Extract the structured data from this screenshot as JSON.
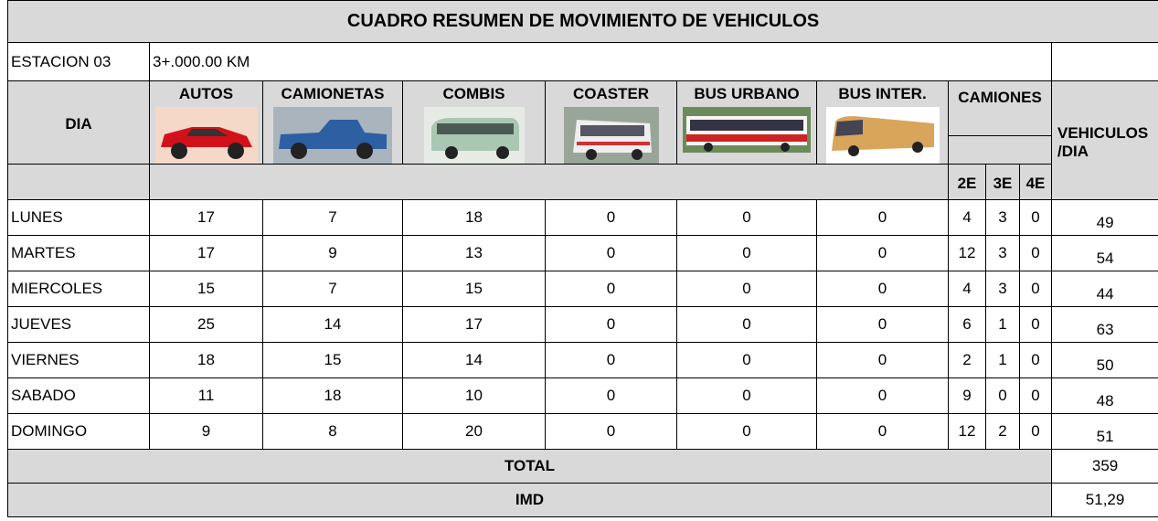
{
  "title": "CUADRO RESUMEN DE MOVIMIENTO DE VEHICULOS",
  "station": {
    "label": "ESTACION 03",
    "location": "3+.000.00 KM"
  },
  "header": {
    "day": "DIA",
    "vehicles": [
      "AUTOS",
      "CAMIONETAS",
      "COMBIS",
      "COASTER",
      "BUS URBANO",
      "BUS INTER."
    ],
    "trucks": "CAMIONES",
    "truck_axles": [
      "2E",
      "3E",
      "4E"
    ],
    "total_per_day": "VEHICULOS /DIA"
  },
  "rows": [
    [
      "LUNES",
      17,
      7,
      18,
      0,
      0,
      0,
      4,
      3,
      0,
      49
    ],
    [
      "MARTES",
      17,
      9,
      13,
      0,
      0,
      0,
      12,
      3,
      0,
      54
    ],
    [
      "MIERCOLES",
      15,
      7,
      15,
      0,
      0,
      0,
      4,
      3,
      0,
      44
    ],
    [
      "JUEVES",
      25,
      14,
      17,
      0,
      0,
      0,
      6,
      1,
      0,
      63
    ],
    [
      "VIERNES",
      18,
      15,
      14,
      0,
      0,
      0,
      2,
      1,
      0,
      50
    ],
    [
      "SABADO",
      11,
      18,
      10,
      0,
      0,
      0,
      9,
      0,
      0,
      48
    ],
    [
      "DOMINGO",
      9,
      8,
      20,
      0,
      0,
      0,
      12,
      2,
      0,
      51
    ]
  ],
  "total": {
    "label": "TOTAL",
    "value": 359
  },
  "imd": {
    "label": "IMD",
    "value": "51,29"
  }
}
